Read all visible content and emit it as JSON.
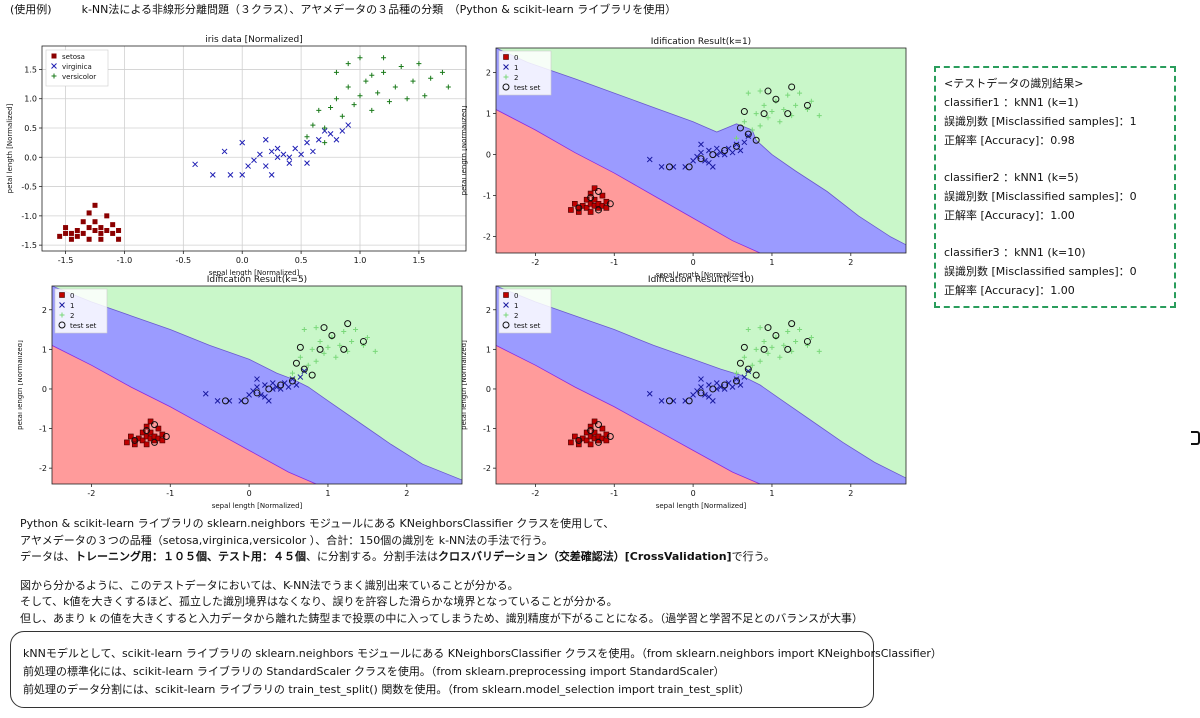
{
  "header": {
    "label": "(使用例)",
    "title": "k-NN法による非線形分離問題（３クラス）、アヤメデータの３品種の分類　（Python & scikit-learn ライブラリを使用）"
  },
  "chart_data": [
    {
      "type": "scatter",
      "title": "iris data [Normalized]",
      "xlabel": "sepal length [Normalized]",
      "ylabel": "petal length [Normalized]",
      "xlim": [
        -1.7,
        1.9
      ],
      "ylim": [
        -1.6,
        1.9
      ],
      "xticks": [
        "-1.5",
        "-1.0",
        "-0.5",
        "0.0",
        "0.5",
        "1.0",
        "1.5"
      ],
      "yticks": [
        "-1.5",
        "-1.0",
        "-0.5",
        "0.0",
        "0.5",
        "1.0",
        "1.5"
      ],
      "grid": true,
      "legend": "top-left",
      "series": [
        {
          "name": "setosa",
          "marker": "square",
          "color": "#8b0000",
          "points": [
            [
              -1.55,
              -1.35
            ],
            [
              -1.5,
              -1.2
            ],
            [
              -1.45,
              -1.3
            ],
            [
              -1.45,
              -1.4
            ],
            [
              -1.4,
              -1.25
            ],
            [
              -1.4,
              -1.35
            ],
            [
              -1.35,
              -1.1
            ],
            [
              -1.35,
              -1.3
            ],
            [
              -1.3,
              -1.2
            ],
            [
              -1.3,
              -1.4
            ],
            [
              -1.25,
              -1.25
            ],
            [
              -1.25,
              -1.1
            ],
            [
              -1.2,
              -1.3
            ],
            [
              -1.2,
              -1.2
            ],
            [
              -1.2,
              -1.4
            ],
            [
              -1.15,
              -1.0
            ],
            [
              -1.15,
              -1.25
            ],
            [
              -1.1,
              -1.3
            ],
            [
              -1.1,
              -1.15
            ],
            [
              -1.05,
              -1.25
            ],
            [
              -1.05,
              -1.4
            ],
            [
              -1.3,
              -0.95
            ],
            [
              -1.25,
              -0.82
            ],
            [
              -1.5,
              -1.3
            ]
          ]
        },
        {
          "name": "virginica",
          "marker": "x",
          "color": "#1f1fb4",
          "points": [
            [
              -0.4,
              -0.12
            ],
            [
              -0.25,
              -0.3
            ],
            [
              -0.1,
              -0.3
            ],
            [
              0.0,
              -0.3
            ],
            [
              0.05,
              -0.15
            ],
            [
              0.1,
              -0.05
            ],
            [
              0.15,
              0.05
            ],
            [
              0.2,
              -0.15
            ],
            [
              0.25,
              0.1
            ],
            [
              0.25,
              -0.3
            ],
            [
              0.3,
              0.0
            ],
            [
              0.3,
              0.15
            ],
            [
              0.35,
              0.05
            ],
            [
              0.4,
              0.0
            ],
            [
              0.4,
              -0.1
            ],
            [
              0.45,
              0.15
            ],
            [
              0.5,
              0.05
            ],
            [
              0.55,
              0.25
            ],
            [
              0.6,
              0.1
            ],
            [
              0.65,
              0.3
            ],
            [
              0.7,
              0.45
            ],
            [
              0.75,
              0.4
            ],
            [
              0.8,
              0.3
            ],
            [
              0.85,
              0.45
            ],
            [
              0.9,
              0.55
            ],
            [
              0.55,
              -0.1
            ],
            [
              -0.15,
              0.1
            ],
            [
              0.0,
              0.25
            ],
            [
              0.2,
              0.3
            ]
          ]
        },
        {
          "name": "versicolor",
          "marker": "plus",
          "color": "#1a7a1a",
          "points": [
            [
              0.55,
              0.35
            ],
            [
              0.6,
              0.55
            ],
            [
              0.65,
              0.8
            ],
            [
              0.7,
              0.5
            ],
            [
              0.75,
              0.85
            ],
            [
              0.8,
              1.0
            ],
            [
              0.85,
              0.7
            ],
            [
              0.9,
              1.2
            ],
            [
              0.95,
              0.9
            ],
            [
              1.0,
              1.05
            ],
            [
              1.05,
              1.3
            ],
            [
              1.1,
              0.8
            ],
            [
              1.1,
              1.4
            ],
            [
              1.15,
              1.1
            ],
            [
              1.2,
              1.45
            ],
            [
              1.25,
              0.95
            ],
            [
              1.3,
              1.2
            ],
            [
              1.35,
              1.55
            ],
            [
              1.4,
              1.0
            ],
            [
              1.45,
              1.3
            ],
            [
              1.5,
              1.6
            ],
            [
              1.55,
              1.05
            ],
            [
              1.6,
              1.35
            ],
            [
              1.7,
              1.45
            ],
            [
              1.75,
              1.2
            ],
            [
              0.9,
              1.6
            ],
            [
              1.0,
              1.7
            ],
            [
              1.2,
              1.7
            ],
            [
              0.8,
              1.45
            ],
            [
              0.7,
              0.25
            ]
          ]
        }
      ]
    },
    {
      "type": "scatter",
      "title": "Idification Result(k=1)",
      "xlabel": "sepal length [Normalized]",
      "ylabel": "petal length [Normalized]",
      "xlim": [
        -2.5,
        2.7
      ],
      "ylim": [
        -2.4,
        2.6
      ],
      "xticks": [
        "-2",
        "-1",
        "0",
        "1",
        "2"
      ],
      "yticks": [
        "-2",
        "-1",
        "0",
        "1",
        "2"
      ],
      "legend": "top-left",
      "legend_entries": [
        "0",
        "1",
        "2",
        "test set"
      ],
      "decision_regions": {
        "0": "#ff9b9b",
        "1": "#9b9bff",
        "2": "#c9f7c9"
      }
    },
    {
      "type": "scatter",
      "title": "Idification Result(k=5)",
      "xlabel": "sepal length [Normalized]",
      "ylabel": "petal length [Normalized]",
      "xlim": [
        -2.5,
        2.7
      ],
      "ylim": [
        -2.4,
        2.6
      ],
      "xticks": [
        "-2",
        "-1",
        "0",
        "1",
        "2"
      ],
      "yticks": [
        "-2",
        "-1",
        "0",
        "1",
        "2"
      ],
      "legend": "top-left",
      "legend_entries": [
        "0",
        "1",
        "2",
        "test set"
      ],
      "decision_regions": {
        "0": "#ff9b9b",
        "1": "#9b9bff",
        "2": "#c9f7c9"
      }
    },
    {
      "type": "scatter",
      "title": "Idification Result(k=10)",
      "xlabel": "sepal length [Normalized]",
      "ylabel": "petal length [Normalized]",
      "xlim": [
        -2.5,
        2.7
      ],
      "ylim": [
        -2.4,
        2.6
      ],
      "xticks": [
        "-2",
        "-1",
        "0",
        "1",
        "2"
      ],
      "yticks": [
        "-2",
        "-1",
        "0",
        "1",
        "2"
      ],
      "legend": "top-left",
      "legend_entries": [
        "0",
        "1",
        "2",
        "test set"
      ],
      "decision_regions": {
        "0": "#ff9b9b",
        "1": "#9b9bff",
        "2": "#c9f7c9"
      }
    }
  ],
  "results": {
    "heading": "<テストデータの識別結果>",
    "lines": [
      "classifier1 ：kNN1 (k=1)",
      "誤識別数 [Misclassified samples]：1",
      "正解率 [Accuracy]：0.98",
      "",
      "classifier2 ：kNN1 (k=5)",
      "誤識別数 [Misclassified samples]：0",
      "正解率 [Accuracy]：1.00",
      "",
      "classifier3 ：kNN1 (k=10)",
      "誤識別数 [Misclassified samples]：0",
      "正解率 [Accuracy]：1.00"
    ]
  },
  "body": {
    "p1": "Python & scikit-learn ライブラリの sklearn.neighbors モジュールにある KNeighborsClassifier クラスを使用して、",
    "p2": "アヤメデータの３つの品種（setosa,virginica,versicolor ）、合計：150個の識別を k-NN法の手法で行う。",
    "p3_a": "データは、",
    "p3_b": "トレーニング用：１０５個、テスト用：４５個",
    "p3_c": "、に分割する。分割手法は",
    "p3_d": "クロスバリデーション（交差確認法）[CrossValidation]",
    "p3_e": "で行う。",
    "p4": "図から分かるように、このテストデータにおいては、K-NN法でうまく識別出来ていることが分かる。",
    "p5": "そして、k値を大きくするほど、孤立した識別境界はなくなり、誤りを許容した滑らかな境界となっていることが分かる。",
    "p6": "但し、あまり k の値を大きくすると入力データから離れた鋳型まで投票の中に入ってしまうため、識別精度が下がることになる。（過学習と学習不足とのバランスが大事）"
  },
  "note": {
    "l1": "kNNモデルとして、scikit-learn ライブラリの sklearn.neighbors モジュールにある KNeighborsClassifier クラスを使用。（from sklearn.neighbors import KNeighborsClassifier）",
    "l2": "前処理の標準化には、scikit-learn ライブラリの StandardScaler クラスを使用。（from sklearn.preprocessing import StandardScaler）",
    "l3": "前処理のデータ分割には、scikit-learn ライブラリの train_test_split() 関数を使用。（from sklearn.model_selection import train_test_split）"
  }
}
